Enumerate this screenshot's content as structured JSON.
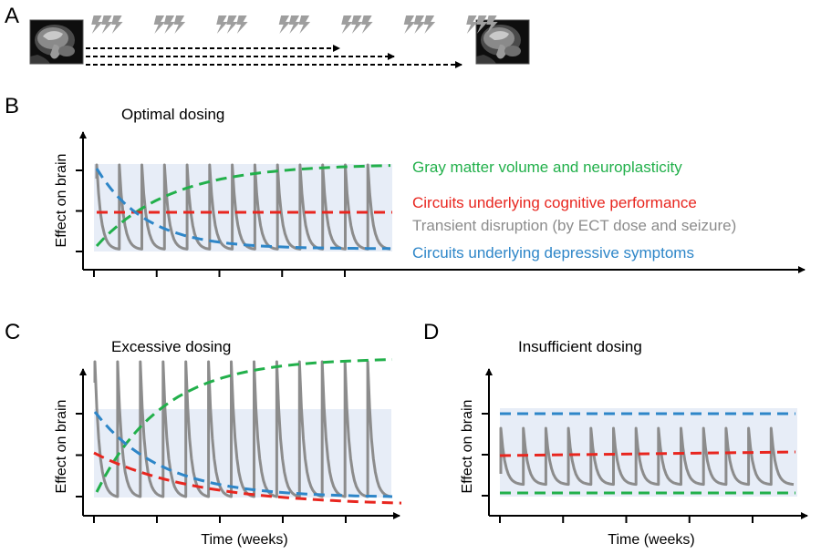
{
  "figure": {
    "colors": {
      "green": "#22b04b",
      "red": "#e8261f",
      "blue": "#2e86c8",
      "gray": "#8c8c8c",
      "band": "#e7edf7",
      "bolt": "#9e9e9e",
      "axis": "#000000"
    },
    "panel_a": {
      "letter": "A",
      "icons": [
        "brain-mri-icon",
        "lightning-bolt-icon",
        "arrow-icon"
      ],
      "bolt_groups": 7,
      "bolts_per_group": 3,
      "dashed_arrows": 3
    },
    "panel_b": {
      "letter": "B",
      "title": "Optimal dosing",
      "ylabel": "Effect on brain",
      "x_ticks": 5,
      "y_ticks": 3,
      "spikes": 13
    },
    "panel_c": {
      "letter": "C",
      "title": "Excessive dosing",
      "ylabel": "Effect on brain",
      "xlabel": "Time (weeks)",
      "x_ticks": 5,
      "y_ticks": 3,
      "spikes": 13
    },
    "panel_d": {
      "letter": "D",
      "title": "Insufficient dosing",
      "ylabel": "Effect on brain",
      "xlabel": "Time (weeks)",
      "x_ticks": 5,
      "y_ticks": 3,
      "spikes": 13
    },
    "legend": [
      {
        "label": "Gray matter volume and neuroplasticity",
        "color": "#22b04b"
      },
      {
        "label": "Circuits underlying cognitive performance",
        "color": "#e8261f"
      },
      {
        "label": "Transient disruption (by ECT dose and seizure)",
        "color": "#8c8c8c"
      },
      {
        "label": "Circuits underlying depressive symptoms",
        "color": "#2e86c8"
      }
    ]
  }
}
